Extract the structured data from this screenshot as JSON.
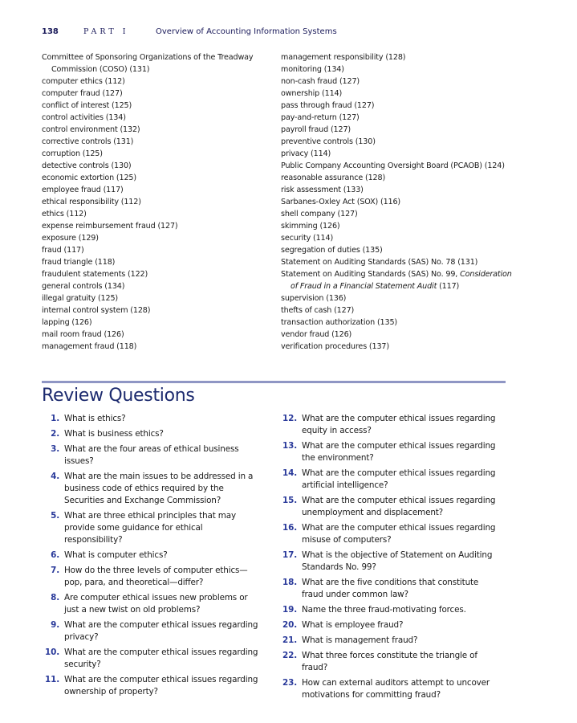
{
  "header": {
    "page_number": "138",
    "part": "PART I",
    "title": "Overview of Accounting Information Systems"
  },
  "terms_left": [
    "Committee of Sponsoring Organizations of the Treadway",
    "Commission (COSO) (131)",
    "computer ethics (112)",
    "computer fraud (127)",
    "conflict of interest (125)",
    "control activities (134)",
    "control environment (132)",
    "corrective controls (131)",
    "corruption (125)",
    "detective controls (130)",
    "economic extortion (125)",
    "employee fraud (117)",
    "ethical responsibility (112)",
    "ethics (112)",
    "expense reimbursement fraud (127)",
    "exposure (129)",
    "fraud (117)",
    "fraud triangle (118)",
    "fraudulent statements (122)",
    "general controls (134)",
    "illegal gratuity (125)",
    "internal control system (128)",
    "lapping (126)",
    "mail room fraud (126)",
    "management fraud (118)"
  ],
  "terms_right": [
    "management responsibility (128)",
    "monitoring (134)",
    "non-cash fraud (127)",
    "ownership (114)",
    "pass through fraud (127)",
    "pay-and-return (127)",
    "payroll fraud (127)",
    "preventive controls (130)",
    "privacy (114)",
    "Public Company Accounting Oversight Board (PCAOB) (124)",
    "reasonable assurance (128)",
    "risk assessment (133)",
    "Sarbanes-Oxley Act (SOX) (116)",
    "shell company (127)",
    "skimming (126)",
    "security (114)",
    "segregation of duties (135)",
    "Statement on Auditing Standards (SAS) No. 78 (131)",
    "Statement on Auditing Standards (SAS) No. 99, ",
    "Consideration",
    "of Fraud in a Financial Statement Audit",
    " (117)",
    "supervision (136)",
    "thefts of cash (127)",
    "transaction authorization (135)",
    "vendor fraud (126)",
    "verification procedures (137)"
  ],
  "review": {
    "title": "Review Questions",
    "left": [
      {
        "n": "1.",
        "t": "What is ethics?"
      },
      {
        "n": "2.",
        "t": "What is business ethics?"
      },
      {
        "n": "3.",
        "t": "What are the four areas of ethical business issues?"
      },
      {
        "n": "4.",
        "t": "What are the main issues to be addressed in a business code of ethics required by the Securities and Exchange Commission?"
      },
      {
        "n": "5.",
        "t": "What are three ethical principles that may provide some guidance for ethical responsibility?"
      },
      {
        "n": "6.",
        "t": "What is computer ethics?"
      },
      {
        "n": "7.",
        "t": "How do the three levels of computer ethics—pop, para, and theoretical—differ?"
      },
      {
        "n": "8.",
        "t": "Are computer ethical issues new problems or just a new twist on old problems?"
      },
      {
        "n": "9.",
        "t": "What are the computer ethical issues regarding privacy?"
      },
      {
        "n": "10.",
        "t": "What are the computer ethical issues regarding security?"
      },
      {
        "n": "11.",
        "t": "What are the computer ethical issues regarding ownership of property?"
      }
    ],
    "right": [
      {
        "n": "12.",
        "t": "What are the computer ethical issues regarding equity in access?"
      },
      {
        "n": "13.",
        "t": "What are the computer ethical issues regarding the environment?"
      },
      {
        "n": "14.",
        "t": "What are the computer ethical issues regarding artificial intelligence?"
      },
      {
        "n": "15.",
        "t": "What are the computer ethical issues regarding unemployment and displacement?"
      },
      {
        "n": "16.",
        "t": "What are the computer ethical issues regarding misuse of computers?"
      },
      {
        "n": "17.",
        "t": "What is the objective of Statement on Auditing Standards No. 99?"
      },
      {
        "n": "18.",
        "t": "What are the five conditions that constitute fraud under common law?"
      },
      {
        "n": "19.",
        "t": "Name the three fraud-motivating forces."
      },
      {
        "n": "20.",
        "t": "What is employee fraud?"
      },
      {
        "n": "21.",
        "t": "What is management fraud?"
      },
      {
        "n": "22.",
        "t": "What three forces constitute the triangle of fraud?"
      },
      {
        "n": "23.",
        "t": "How can external auditors attempt to uncover motivations for committing fraud?"
      }
    ]
  },
  "colors": {
    "heading": "#1c2a6e",
    "numbers": "#2a3a9a",
    "rule": "#8f96c4"
  }
}
